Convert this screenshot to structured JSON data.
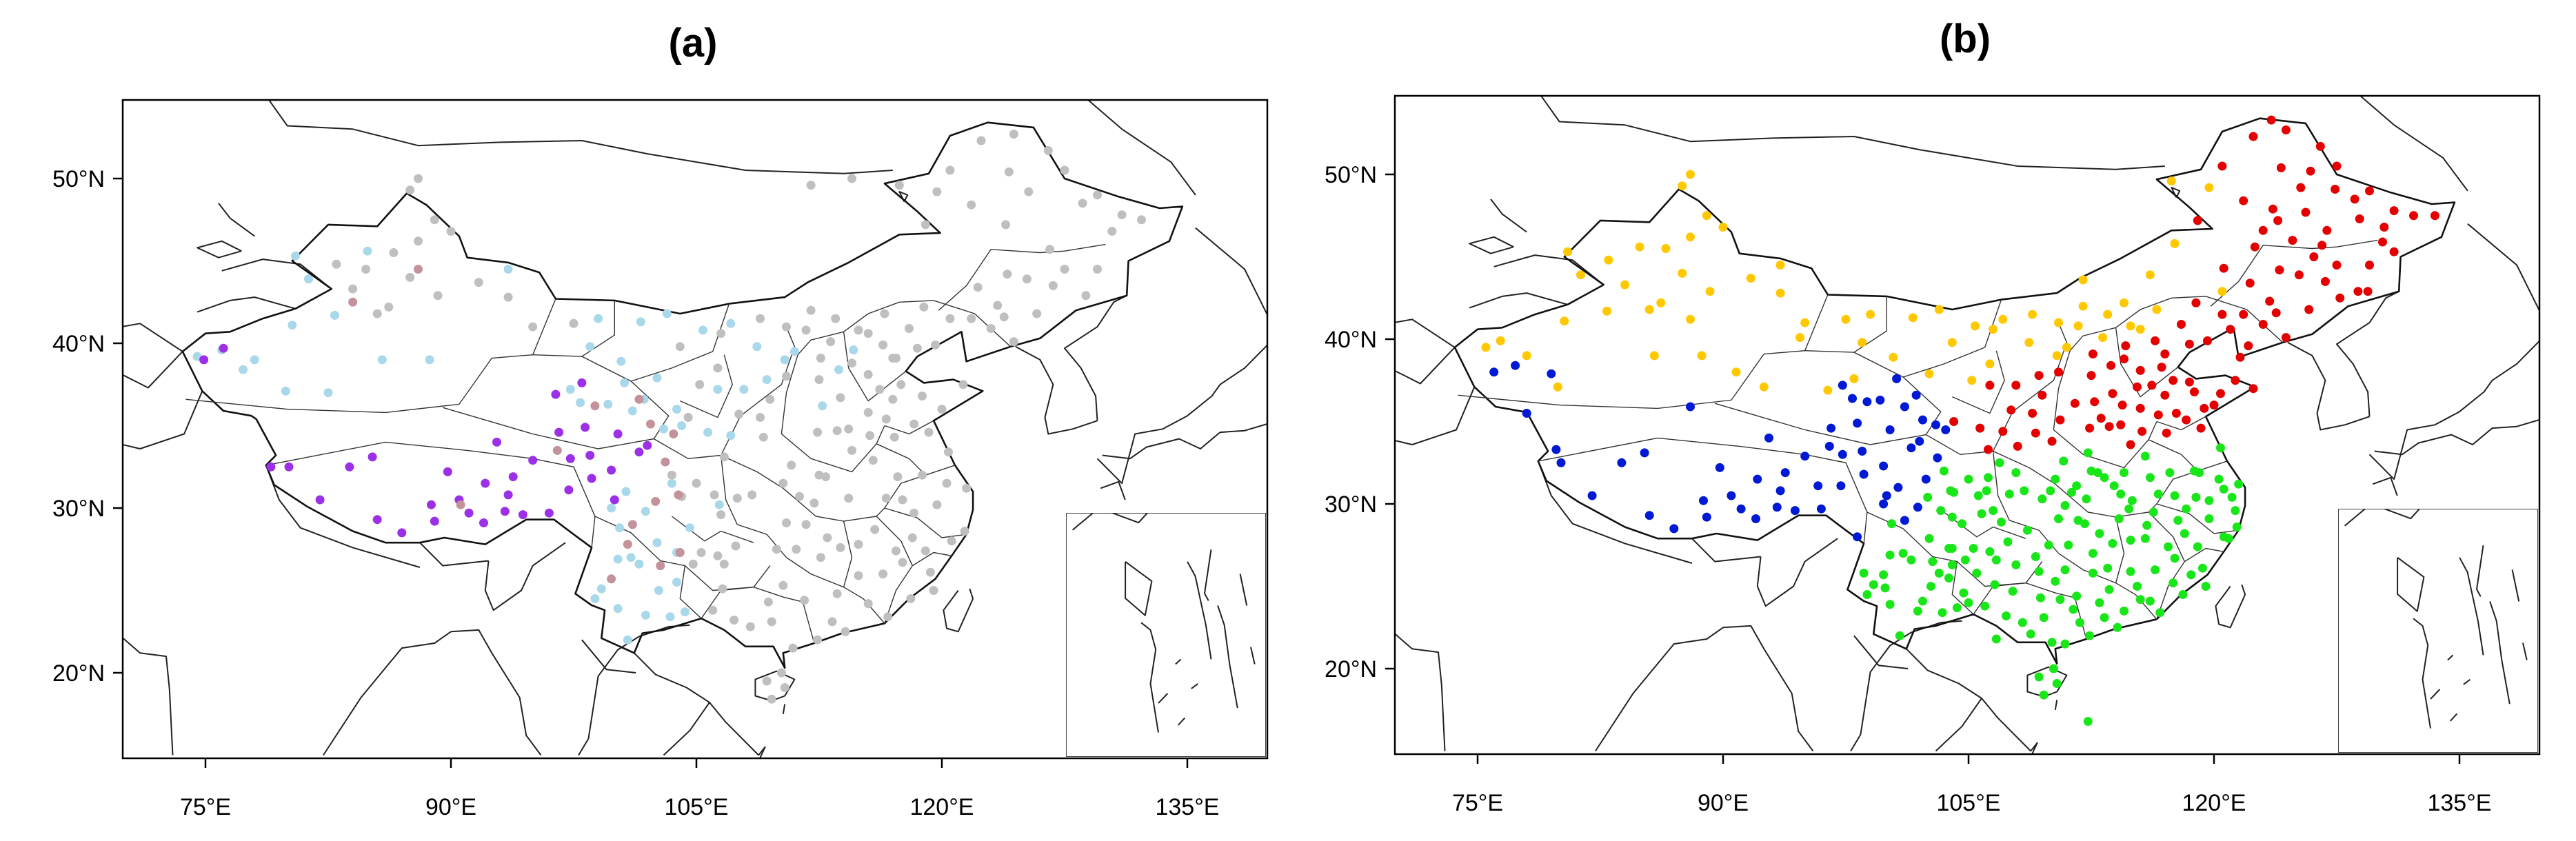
{
  "panels": [
    {
      "title": "(a)",
      "x_ticks": [
        "75°E",
        "90°E",
        "105°E",
        "120°E",
        "135°E"
      ],
      "y_ticks": [
        "20°N",
        "30°N",
        "40°N",
        "50°N"
      ],
      "station_colors": {
        "grey": "#bfbfbf",
        "light-blue": "#a8d8ea",
        "purple": "#9b30e6",
        "pink": "#c4929a"
      }
    },
    {
      "title": "(b)",
      "x_ticks": [
        "75°E",
        "90°E",
        "105°E",
        "120°E",
        "135°E"
      ],
      "y_ticks": [
        "20°N",
        "30°N",
        "40°N",
        "50°N"
      ],
      "station_colors": {
        "yellow": "#ffc800",
        "red": "#e50000",
        "blue": "#0019d4",
        "green": "#19e619"
      }
    }
  ]
}
